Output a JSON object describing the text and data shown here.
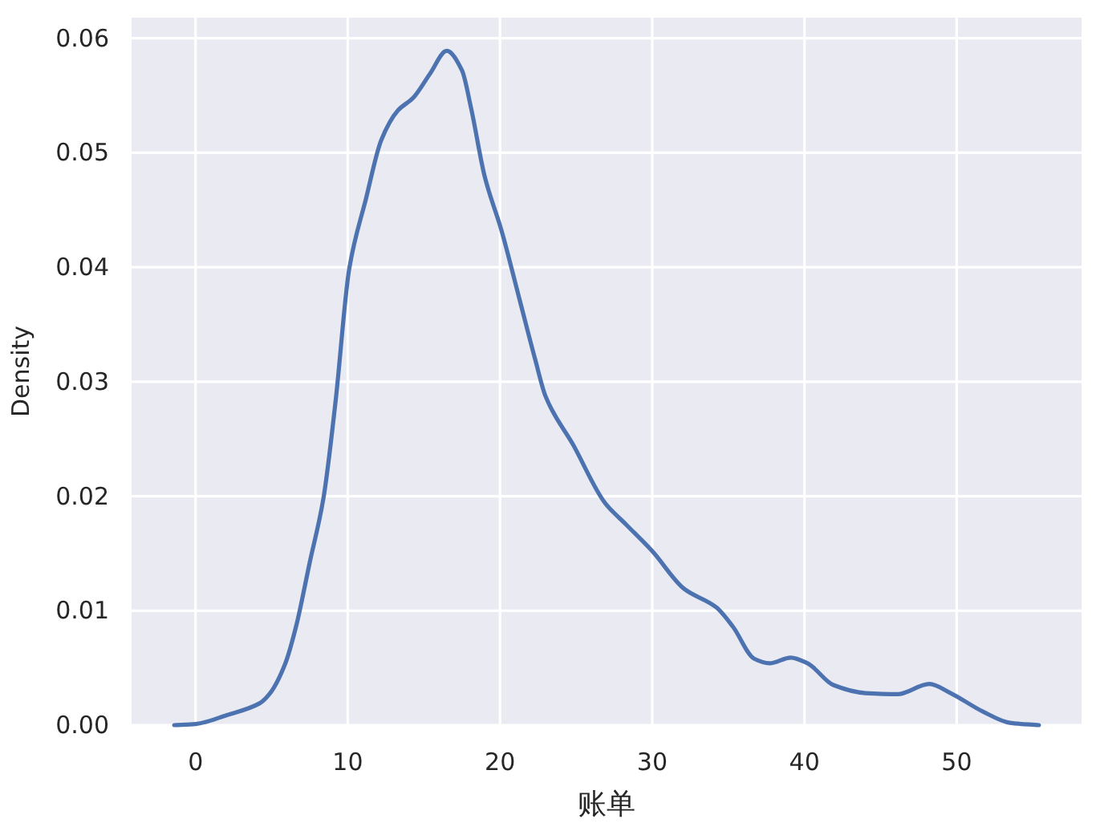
{
  "chart_data": {
    "type": "line",
    "xlabel": "账单",
    "ylabel": "Density",
    "x": [
      -1.4,
      0.0,
      2.1,
      4.2,
      4.9,
      5.9,
      6.6,
      7.5,
      8.4,
      9.2,
      10.1,
      11.2,
      12.2,
      13.3,
      14.3,
      15.4,
      16.5,
      17.5,
      18.1,
      19.0,
      20.1,
      21.3,
      22.3,
      23.0,
      24.8,
      26.9,
      28.3,
      30.0,
      32.1,
      34.2,
      35.3,
      36.7,
      37.7,
      39.1,
      40.2,
      41.9,
      44.0,
      46.1,
      48.2,
      49.6,
      51.7,
      53.5,
      55.4
    ],
    "values": [
      0.0,
      0.0001,
      0.0009,
      0.0019,
      0.0028,
      0.0054,
      0.0086,
      0.0142,
      0.0198,
      0.0283,
      0.0399,
      0.046,
      0.0511,
      0.0537,
      0.0548,
      0.0569,
      0.0589,
      0.0572,
      0.0539,
      0.0479,
      0.0432,
      0.0371,
      0.032,
      0.0287,
      0.0245,
      0.0194,
      0.0175,
      0.0152,
      0.0119,
      0.0103,
      0.0086,
      0.0058,
      0.0054,
      0.0059,
      0.0054,
      0.0035,
      0.0028,
      0.0027,
      0.0036,
      0.0028,
      0.0012,
      0.0002,
      0.0
    ],
    "color": "#4c72b0",
    "xlim": [
      -4.2,
      58.2
    ],
    "ylim": [
      0,
      0.0618
    ],
    "xticks": [
      0,
      10,
      20,
      30,
      40,
      50
    ],
    "yticks": [
      {
        "value": 0,
        "label": "0.00"
      },
      {
        "value": 0.01,
        "label": "0.01"
      },
      {
        "value": 0.02,
        "label": "0.02"
      },
      {
        "value": 0.03,
        "label": "0.03"
      },
      {
        "value": 0.04,
        "label": "0.04"
      },
      {
        "value": 0.05,
        "label": "0.05"
      },
      {
        "value": 0.06,
        "label": "0.06"
      }
    ],
    "grid": true
  }
}
